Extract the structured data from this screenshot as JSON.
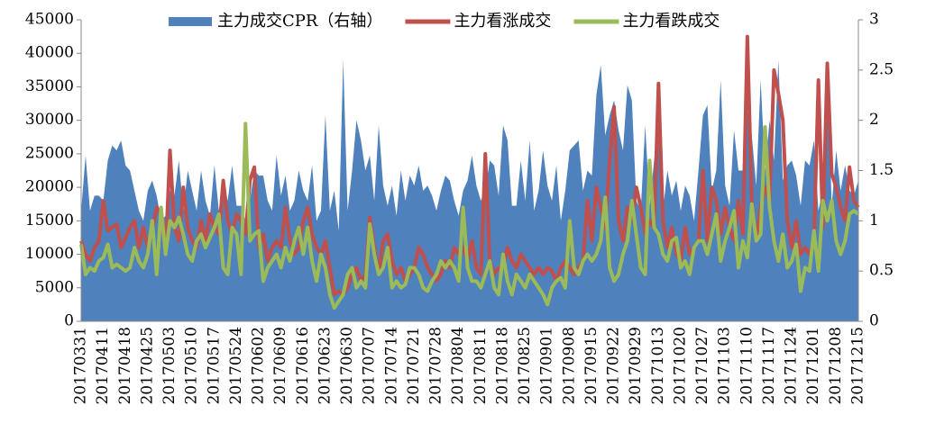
{
  "chart_data": {
    "type": "line",
    "categories": [
      "20170331",
      null,
      null,
      null,
      null,
      "20170411",
      null,
      null,
      null,
      null,
      "20170418",
      null,
      null,
      null,
      null,
      "20170425",
      null,
      null,
      null,
      null,
      "20170503",
      null,
      null,
      null,
      null,
      "20170510",
      null,
      null,
      null,
      null,
      "20170517",
      null,
      null,
      null,
      null,
      "20170524",
      null,
      null,
      null,
      null,
      "20170602",
      null,
      null,
      null,
      null,
      "20170609",
      null,
      null,
      null,
      null,
      "20170616",
      null,
      null,
      null,
      null,
      "20170623",
      null,
      null,
      null,
      null,
      "20170630",
      null,
      null,
      null,
      null,
      "20170707",
      null,
      null,
      null,
      null,
      "20170714",
      null,
      null,
      null,
      null,
      "20170721",
      null,
      null,
      null,
      null,
      "20170728",
      null,
      null,
      null,
      null,
      "20170804",
      null,
      null,
      null,
      null,
      "20170811",
      null,
      null,
      null,
      null,
      "20170818",
      null,
      null,
      null,
      null,
      "20170825",
      null,
      null,
      null,
      null,
      "20170901",
      null,
      null,
      null,
      null,
      "20170908",
      null,
      null,
      null,
      null,
      "20170915",
      null,
      null,
      null,
      null,
      "20170922",
      null,
      null,
      null,
      null,
      "20170929",
      null,
      null,
      null,
      null,
      "20171013",
      null,
      null,
      null,
      null,
      "20171020",
      null,
      null,
      null,
      null,
      "20171027",
      null,
      null,
      null,
      null,
      "20171103",
      null,
      null,
      null,
      null,
      "20171110",
      null,
      null,
      null,
      null,
      "20171117",
      null,
      null,
      null,
      null,
      "20171124",
      null,
      null,
      null,
      null,
      "20171201",
      null,
      null,
      null,
      null,
      "20171208",
      null,
      null,
      null,
      null,
      "20171215"
    ],
    "series": [
      {
        "name": "主力成交CPR（右轴）",
        "type": "area",
        "axis": "y2",
        "color": "#4f81bd",
        "values": [
          1.1,
          1.65,
          1.1,
          1.25,
          1.25,
          1.2,
          1.6,
          1.75,
          1.7,
          1.8,
          1.55,
          1.5,
          1.3,
          1.1,
          1.0,
          1.3,
          1.4,
          1.25,
          1.0,
          1.05,
          1.3,
          1.25,
          1.6,
          1.1,
          1.5,
          1.3,
          1.1,
          1.5,
          1.2,
          1.05,
          1.55,
          1.1,
          1.4,
          1.2,
          1.55,
          1.15,
          1.15,
          1.0,
          1.2,
          1.5,
          1.45,
          1.45,
          1.2,
          1.1,
          1.65,
          1.25,
          1.45,
          1.1,
          1.2,
          1.5,
          1.3,
          1.2,
          1.55,
          1.0,
          1.1,
          2.05,
          1.1,
          1.3,
          0.9,
          2.6,
          1.1,
          1.5,
          2.0,
          1.8,
          1.5,
          1.65,
          1.2,
          1.95,
          1.35,
          1.15,
          1.35,
          1.05,
          1.5,
          1.2,
          1.45,
          1.35,
          1.55,
          1.3,
          1.35,
          1.25,
          1.1,
          1.3,
          1.45,
          1.4,
          1.2,
          1.05,
          1.3,
          1.4,
          1.65,
          1.35,
          1.2,
          1.3,
          1.6,
          1.55,
          1.25,
          1.95,
          1.8,
          1.15,
          1.15,
          1.6,
          1.2,
          1.8,
          1.1,
          1.3,
          1.7,
          1.35,
          1.2,
          1.55,
          1.0,
          1.3,
          1.7,
          1.75,
          1.8,
          1.3,
          1.5,
          1.45,
          2.25,
          2.55,
          1.85,
          2.05,
          2.2,
          1.9,
          1.7,
          2.35,
          2.2,
          1.2,
          1.1,
          1.95,
          1.15,
          1.6,
          1.95,
          1.1,
          1.5,
          1.25,
          1.4,
          1.1,
          1.35,
          1.25,
          1.0,
          1.5,
          2.05,
          2.15,
          1.3,
          1.5,
          2.4,
          1.35,
          1.15,
          1.9,
          1.5,
          1.5,
          2.1,
          1.85,
          1.35,
          2.4,
          1.5,
          2.0,
          1.6,
          2.6,
          1.4,
          1.55,
          1.6,
          1.45,
          1.15,
          1.6,
          1.55,
          1.8,
          1.1,
          1.3,
          2.55,
          1.15,
          1.7,
          1.3,
          1.55,
          1.3,
          1.25,
          1.4
        ]
      },
      {
        "name": "主力看涨成交",
        "type": "line",
        "color": "#c0504d",
        "values": [
          12000,
          10000,
          9000,
          11000,
          12000,
          18000,
          13500,
          14000,
          14500,
          11000,
          12500,
          14000,
          15000,
          11000,
          14000,
          11000,
          13500,
          17000,
          16000,
          10000,
          25500,
          14000,
          12000,
          20000,
          14000,
          12000,
          11000,
          15000,
          12000,
          16000,
          14000,
          13000,
          21000,
          15000,
          13000,
          16000,
          15000,
          13000,
          21000,
          23000,
          11000,
          13000,
          9000,
          11000,
          12000,
          11000,
          17000,
          12000,
          10000,
          11000,
          15000,
          17000,
          13000,
          11000,
          10000,
          12000,
          8000,
          4000,
          4500,
          4000,
          5000,
          7000,
          8000,
          6000,
          7000,
          15500,
          11000,
          7000,
          12000,
          13000,
          9000,
          7000,
          8000,
          6000,
          7000,
          8000,
          11000,
          10000,
          8000,
          7000,
          6000,
          7000,
          9000,
          8000,
          11000,
          10000,
          11000,
          9000,
          12000,
          8000,
          7000,
          25000,
          9000,
          7000,
          8000,
          8000,
          11000,
          9000,
          8000,
          10000,
          9000,
          8000,
          7000,
          8000,
          7000,
          8000,
          7500,
          6000,
          8000,
          9000,
          8000,
          7000,
          8000,
          9000,
          18000,
          12000,
          20000,
          17000,
          14000,
          24000,
          32000,
          15000,
          12000,
          17000,
          15000,
          20000,
          17000,
          13000,
          15000,
          14000,
          35500,
          15000,
          11000,
          14000,
          10000,
          9000,
          14000,
          10000,
          11000,
          12000,
          22500,
          12000,
          20000,
          18000,
          13000,
          17000,
          14000,
          12000,
          18000,
          13000,
          42500,
          18000,
          12000,
          17000,
          20000,
          18000,
          37500,
          34000,
          30000,
          15000,
          11000,
          15000,
          10000,
          11000,
          10000,
          12000,
          36000,
          14000,
          38500,
          22000,
          20000,
          17000,
          15000,
          23000,
          18000,
          17000
        ]
      },
      {
        "name": "主力看跌成交",
        "type": "line",
        "color": "#9bbb59",
        "values": [
          11500,
          7000,
          8000,
          7500,
          9000,
          9500,
          11500,
          8000,
          8500,
          8000,
          7500,
          8000,
          11000,
          9000,
          8000,
          10000,
          15000,
          7000,
          17000,
          10000,
          15000,
          14000,
          15500,
          13000,
          10000,
          9000,
          12000,
          13000,
          11000,
          12500,
          14000,
          16000,
          8000,
          7000,
          14000,
          13000,
          7000,
          29500,
          12000,
          13000,
          13500,
          6000,
          8000,
          9000,
          10000,
          8000,
          11000,
          9000,
          12000,
          14000,
          10000,
          14000,
          9000,
          6000,
          10000,
          8000,
          4000,
          2000,
          3000,
          4000,
          7000,
          8000,
          5000,
          6000,
          5000,
          14500,
          10000,
          7000,
          8000,
          11000,
          5000,
          6000,
          5000,
          5500,
          8000,
          8000,
          7000,
          5000,
          4500,
          6000,
          7000,
          9000,
          8000,
          9000,
          8000,
          6000,
          17000,
          8000,
          6000,
          6000,
          5000,
          7000,
          9000,
          5000,
          4000,
          10000,
          6000,
          4000,
          7000,
          6000,
          5000,
          7000,
          6000,
          5000,
          4000,
          2500,
          5000,
          6000,
          6500,
          5000,
          15000,
          8000,
          7000,
          9000,
          10000,
          9000,
          10000,
          12000,
          18500,
          8000,
          6000,
          7000,
          10000,
          12000,
          18000,
          13000,
          8000,
          7000,
          24000,
          14000,
          13000,
          10000,
          9000,
          12000,
          12500,
          8000,
          9000,
          7000,
          11000,
          12000,
          12000,
          10000,
          13000,
          16000,
          9000,
          12000,
          14000,
          16500,
          8000,
          12000,
          9500,
          17500,
          12000,
          13000,
          29000,
          17000,
          12000,
          9000,
          13000,
          8000,
          9000,
          11500,
          4500,
          8000,
          7500,
          13500,
          7500,
          18000,
          15000,
          18000,
          12000,
          10000,
          12000,
          16000,
          16500,
          16000
        ]
      }
    ],
    "ylim": [
      0,
      45000
    ],
    "yticks": [
      0,
      5000,
      10000,
      15000,
      20000,
      25000,
      30000,
      35000,
      40000,
      45000
    ],
    "y2lim": [
      0,
      3
    ],
    "y2ticks": [
      0,
      0.5,
      1,
      1.5,
      2,
      2.5,
      3
    ],
    "legend": "top"
  }
}
